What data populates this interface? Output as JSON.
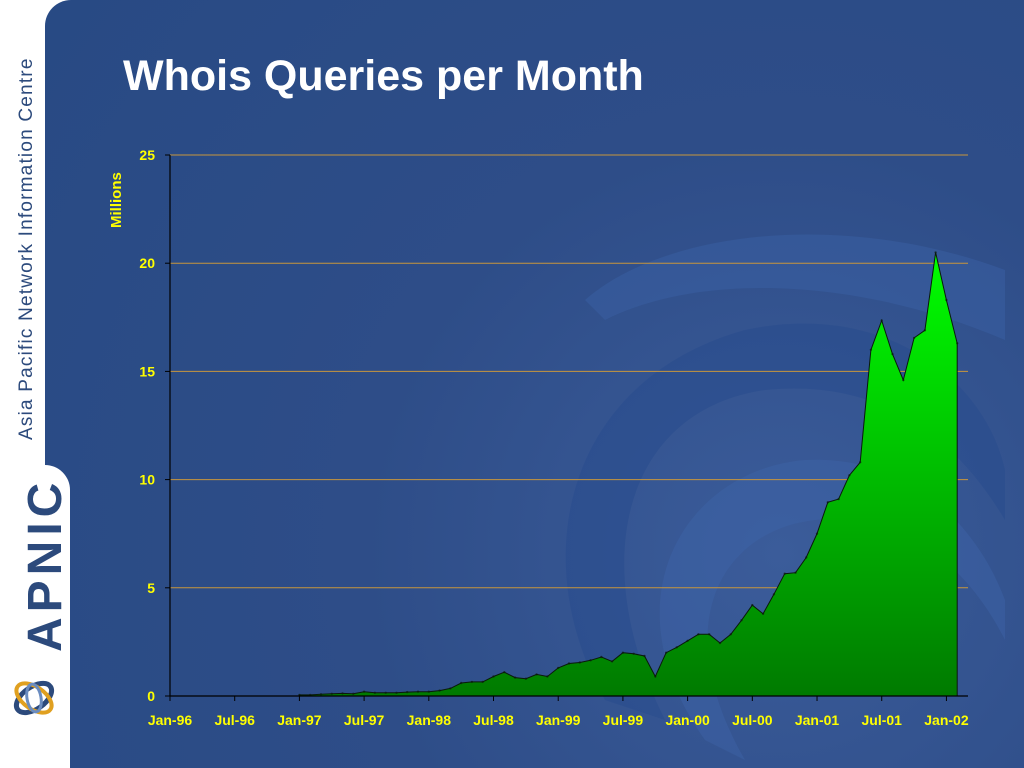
{
  "sidebar": {
    "org_name": "Asia Pacific Network Information Centre",
    "logo_text": "APNIC"
  },
  "title": "Whois Queries per Month",
  "colors": {
    "background": "#2c4c88",
    "area_fill_top": "#00ff00",
    "area_fill_bottom": "#007a00",
    "gridline": "#c8963c",
    "text": "#ffff00",
    "title": "#ffffff"
  },
  "chart_data": {
    "type": "area",
    "title": "Whois Queries per Month",
    "ylabel": "Millions",
    "xlabel": "",
    "ylim": [
      0,
      25
    ],
    "yticks": [
      0,
      5,
      10,
      15,
      20,
      25
    ],
    "xlim": [
      "Jan-96",
      "Mar-02"
    ],
    "xtick_labels": [
      "Jan-96",
      "Jul-96",
      "Jan-97",
      "Jul-97",
      "Jan-98",
      "Jul-98",
      "Jan-99",
      "Jul-99",
      "Jan-00",
      "Jul-00",
      "Jan-01",
      "Jul-01",
      "Jan-02"
    ],
    "grid": true,
    "x": [
      "Jan-97",
      "Feb-97",
      "Mar-97",
      "Apr-97",
      "May-97",
      "Jun-97",
      "Jul-97",
      "Aug-97",
      "Sep-97",
      "Oct-97",
      "Nov-97",
      "Dec-97",
      "Jan-98",
      "Feb-98",
      "Mar-98",
      "Apr-98",
      "May-98",
      "Jun-98",
      "Jul-98",
      "Aug-98",
      "Sep-98",
      "Oct-98",
      "Nov-98",
      "Dec-98",
      "Jan-99",
      "Feb-99",
      "Mar-99",
      "Apr-99",
      "May-99",
      "Jun-99",
      "Jul-99",
      "Aug-99",
      "Sep-99",
      "Oct-99",
      "Nov-99",
      "Dec-99",
      "Jan-00",
      "Feb-00",
      "Mar-00",
      "Apr-00",
      "May-00",
      "Jun-00",
      "Jul-00",
      "Aug-00",
      "Sep-00",
      "Oct-00",
      "Nov-00",
      "Dec-00",
      "Jan-01",
      "Feb-01",
      "Mar-01",
      "Apr-01",
      "May-01",
      "Jun-01",
      "Jul-01",
      "Aug-01",
      "Sep-01",
      "Oct-01",
      "Nov-01",
      "Dec-01",
      "Jan-02",
      "Feb-02"
    ],
    "series": [
      {
        "values": [
          0.05,
          0.05,
          0.08,
          0.1,
          0.12,
          0.1,
          0.2,
          0.15,
          0.15,
          0.15,
          0.18,
          0.2,
          0.2,
          0.25,
          0.35,
          0.6,
          0.65,
          0.65,
          0.9,
          1.1,
          0.85,
          0.8,
          1.0,
          0.9,
          1.3,
          1.5,
          1.55,
          1.65,
          1.8,
          1.6,
          2.0,
          1.95,
          1.85,
          0.9,
          2.0,
          2.25,
          2.55,
          2.85,
          2.85,
          2.45,
          2.85,
          3.5,
          4.2,
          3.8,
          4.7,
          5.65,
          5.7,
          6.4,
          7.5,
          8.95,
          9.1,
          10.2,
          10.8,
          16.0,
          17.35,
          15.8,
          14.6,
          16.55,
          16.9,
          20.5,
          18.3,
          16.3
        ]
      }
    ]
  }
}
